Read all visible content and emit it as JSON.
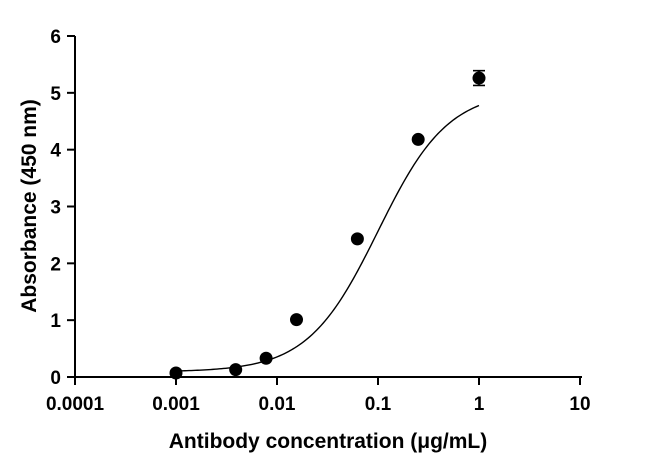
{
  "chart_data": {
    "type": "scatter",
    "title": "",
    "xlabel": "Antibody concentration (μg/mL)",
    "ylabel": "Absorbance (450 nm)",
    "xscale": "log",
    "xlim": [
      0.0001,
      10
    ],
    "ylim": [
      0,
      6
    ],
    "xticks": [
      0.0001,
      0.001,
      0.01,
      0.1,
      1,
      10
    ],
    "xtick_labels": [
      "0.0001",
      "0.001",
      "0.01",
      "0.1",
      "1",
      "10"
    ],
    "yticks": [
      0,
      1,
      2,
      3,
      4,
      5,
      6
    ],
    "ytick_labels": [
      "0",
      "1",
      "2",
      "3",
      "4",
      "5",
      "6"
    ],
    "grid": false,
    "series": [
      {
        "points": [
          {
            "x": 0.001,
            "y": 0.07
          },
          {
            "x": 0.0039,
            "y": 0.13
          },
          {
            "x": 0.0078,
            "y": 0.33
          },
          {
            "x": 0.0156,
            "y": 1.01
          },
          {
            "x": 0.0625,
            "y": 2.43
          },
          {
            "x": 0.25,
            "y": 4.18
          },
          {
            "x": 1,
            "y": 5.26,
            "err": 0.13
          }
        ]
      }
    ],
    "fit": {
      "model": "4PL",
      "bottom": 0.09,
      "top": 5.04,
      "ec50": 0.1,
      "hill": 1.25,
      "x_range": [
        0.001,
        1
      ]
    }
  }
}
